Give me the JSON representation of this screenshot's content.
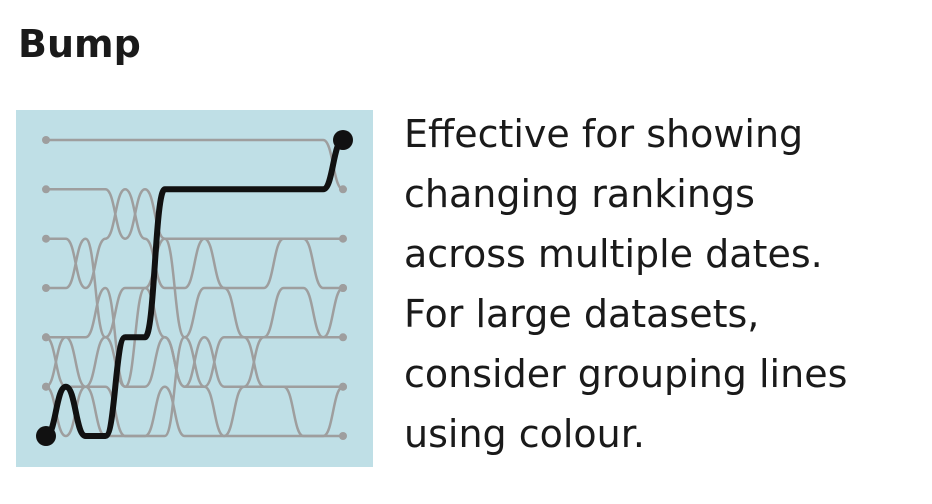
{
  "title": "Bump",
  "description_lines": [
    "Effective for showing",
    "changing rankings",
    "across multiple dates.",
    "For large datasets,",
    "consider grouping lines",
    "using colour."
  ],
  "chart_data": {
    "type": "line",
    "title": "",
    "xlabel": "",
    "ylabel": "",
    "x": [
      1,
      2,
      3,
      4,
      5,
      6,
      7,
      8,
      9,
      10,
      11,
      12,
      13,
      14,
      15,
      16
    ],
    "ylim": [
      1,
      7
    ],
    "y_inverted": true,
    "grid": false,
    "background_color": "#bfdfe6",
    "colors": {
      "highlight": "#111111",
      "context": "#9e9e9e"
    },
    "series": [
      {
        "values": [
          7,
          6,
          7,
          7,
          5,
          5,
          2,
          2,
          2,
          2,
          2,
          2,
          2,
          2,
          2,
          1
        ],
        "highlight": true
      },
      {
        "values": [
          1,
          1,
          1,
          1,
          1,
          1,
          1,
          1,
          1,
          1,
          1,
          1,
          1,
          1,
          1,
          2
        ]
      },
      {
        "values": [
          2,
          2,
          2,
          2,
          3,
          2,
          3,
          3,
          3,
          3,
          3,
          3,
          3,
          3,
          3,
          3
        ]
      },
      {
        "values": [
          3,
          3,
          4,
          3,
          2,
          3,
          4,
          4,
          3,
          4,
          4,
          4,
          3,
          3,
          4,
          4
        ]
      },
      {
        "values": [
          4,
          4,
          3,
          5,
          4,
          4,
          3,
          5,
          4,
          4,
          5,
          5,
          5,
          5,
          5,
          4
        ]
      },
      {
        "values": [
          5,
          5,
          5,
          4,
          6,
          6,
          5,
          6,
          6,
          5,
          5,
          6,
          6,
          6,
          6,
          6
        ]
      },
      {
        "values": [
          6,
          7,
          6,
          6,
          7,
          7,
          6,
          7,
          7,
          7,
          7,
          7,
          7,
          7,
          7,
          7
        ]
      },
      {
        "values": [
          6,
          5,
          6,
          5,
          6,
          4,
          5,
          6,
          5,
          6,
          6,
          5,
          4,
          4,
          5,
          5
        ]
      },
      {
        "values": [
          5,
          6,
          6,
          7,
          7,
          7,
          7,
          5,
          6,
          7,
          6,
          6,
          6,
          7,
          7,
          6
        ]
      }
    ]
  }
}
